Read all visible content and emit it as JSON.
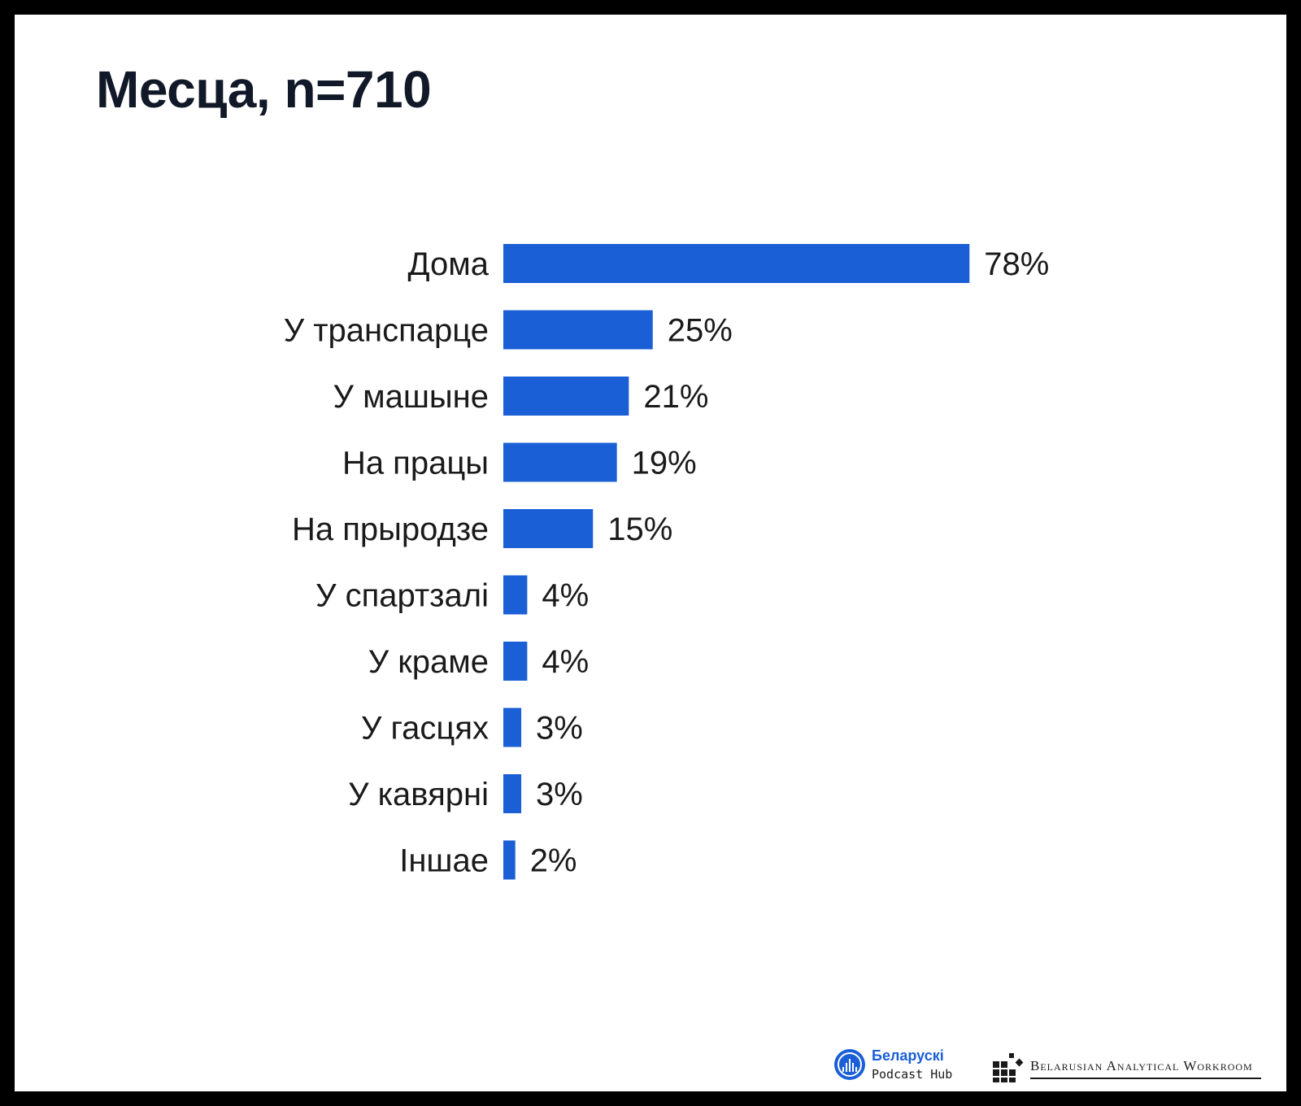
{
  "chart_data": {
    "type": "bar",
    "orientation": "horizontal",
    "title": "Месца, n=710",
    "categories": [
      "Дома",
      "У транспарце",
      "У машыне",
      "На працы",
      "На прыродзе",
      "У спартзалі",
      "У краме",
      "У гасцях",
      "У кавярні",
      "Іншае"
    ],
    "values": [
      78,
      25,
      21,
      19,
      15,
      4,
      4,
      3,
      3,
      2
    ],
    "value_labels": [
      "78%",
      "25%",
      "21%",
      "19%",
      "15%",
      "4%",
      "4%",
      "3%",
      "3%",
      "2%"
    ],
    "xlim": [
      0,
      100
    ],
    "grid": false,
    "legend": "none",
    "bar_color": "#1a5fd6"
  },
  "footer": {
    "podcast_logo": {
      "name": "Беларускі",
      "sub": "Podcast Hub"
    },
    "workroom_logo": {
      "name": "Belarusian Analytical Workroom"
    }
  }
}
